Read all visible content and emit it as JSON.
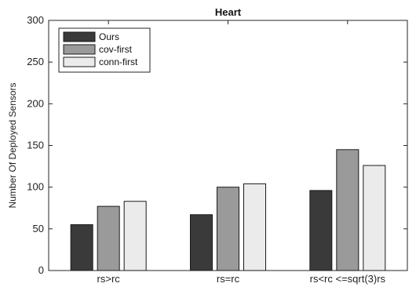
{
  "chart_data": {
    "type": "bar",
    "title": "Heart",
    "xlabel": "",
    "ylabel": "Number Of Deployed Sensors",
    "categories": [
      "rs>rc",
      "rs=rc",
      "rs<rc <=sqrt(3)rs"
    ],
    "ylim": [
      0,
      300
    ],
    "yticks": [
      0,
      50,
      100,
      150,
      200,
      250,
      300
    ],
    "grid": false,
    "legend_position": "top-left",
    "series": [
      {
        "name": "Ours",
        "values": [
          55,
          67,
          96
        ],
        "color": "#3a3a3a"
      },
      {
        "name": "cov-first",
        "values": [
          77,
          100,
          145
        ],
        "color": "#9a9a9a"
      },
      {
        "name": "conn-first",
        "values": [
          83,
          104,
          126
        ],
        "color": "#ebebeb"
      }
    ]
  }
}
